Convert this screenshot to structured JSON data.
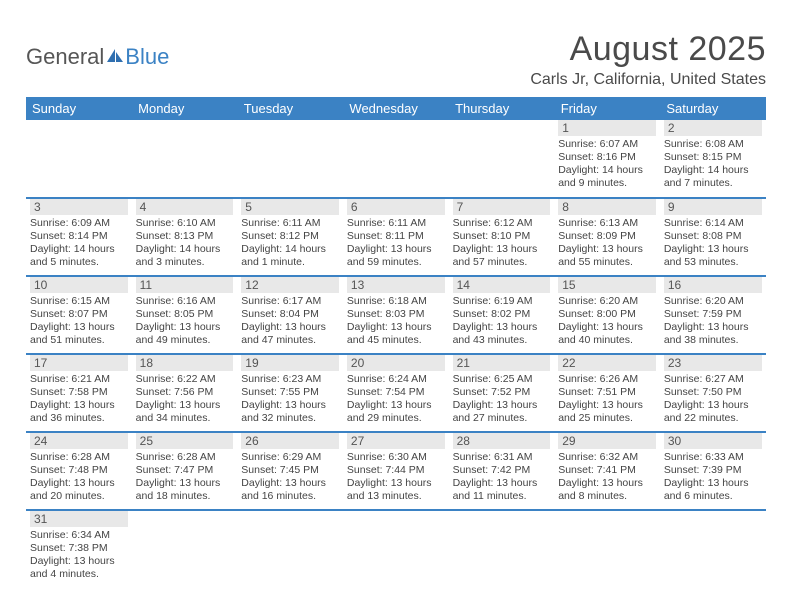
{
  "logo": {
    "textA": "General",
    "textB": "Blue"
  },
  "title": "August 2025",
  "location": "Carls Jr, California, United States",
  "colors": {
    "header_bg": "#3b82c4",
    "header_text": "#ffffff",
    "daynum_bg": "#e8e8e8",
    "text": "#444444",
    "row_divider": "#3b82c4",
    "page_bg": "#ffffff"
  },
  "typography": {
    "title_fontsize": 34,
    "location_fontsize": 16,
    "header_fontsize": 13,
    "daynum_fontsize": 12,
    "info_fontsize": 10.5
  },
  "weekdays": [
    "Sunday",
    "Monday",
    "Tuesday",
    "Wednesday",
    "Thursday",
    "Friday",
    "Saturday"
  ],
  "weeks": [
    [
      null,
      null,
      null,
      null,
      null,
      {
        "n": "1",
        "sr": "Sunrise: 6:07 AM",
        "ss": "Sunset: 8:16 PM",
        "dl": "Daylight: 14 hours and 9 minutes."
      },
      {
        "n": "2",
        "sr": "Sunrise: 6:08 AM",
        "ss": "Sunset: 8:15 PM",
        "dl": "Daylight: 14 hours and 7 minutes."
      }
    ],
    [
      {
        "n": "3",
        "sr": "Sunrise: 6:09 AM",
        "ss": "Sunset: 8:14 PM",
        "dl": "Daylight: 14 hours and 5 minutes."
      },
      {
        "n": "4",
        "sr": "Sunrise: 6:10 AM",
        "ss": "Sunset: 8:13 PM",
        "dl": "Daylight: 14 hours and 3 minutes."
      },
      {
        "n": "5",
        "sr": "Sunrise: 6:11 AM",
        "ss": "Sunset: 8:12 PM",
        "dl": "Daylight: 14 hours and 1 minute."
      },
      {
        "n": "6",
        "sr": "Sunrise: 6:11 AM",
        "ss": "Sunset: 8:11 PM",
        "dl": "Daylight: 13 hours and 59 minutes."
      },
      {
        "n": "7",
        "sr": "Sunrise: 6:12 AM",
        "ss": "Sunset: 8:10 PM",
        "dl": "Daylight: 13 hours and 57 minutes."
      },
      {
        "n": "8",
        "sr": "Sunrise: 6:13 AM",
        "ss": "Sunset: 8:09 PM",
        "dl": "Daylight: 13 hours and 55 minutes."
      },
      {
        "n": "9",
        "sr": "Sunrise: 6:14 AM",
        "ss": "Sunset: 8:08 PM",
        "dl": "Daylight: 13 hours and 53 minutes."
      }
    ],
    [
      {
        "n": "10",
        "sr": "Sunrise: 6:15 AM",
        "ss": "Sunset: 8:07 PM",
        "dl": "Daylight: 13 hours and 51 minutes."
      },
      {
        "n": "11",
        "sr": "Sunrise: 6:16 AM",
        "ss": "Sunset: 8:05 PM",
        "dl": "Daylight: 13 hours and 49 minutes."
      },
      {
        "n": "12",
        "sr": "Sunrise: 6:17 AM",
        "ss": "Sunset: 8:04 PM",
        "dl": "Daylight: 13 hours and 47 minutes."
      },
      {
        "n": "13",
        "sr": "Sunrise: 6:18 AM",
        "ss": "Sunset: 8:03 PM",
        "dl": "Daylight: 13 hours and 45 minutes."
      },
      {
        "n": "14",
        "sr": "Sunrise: 6:19 AM",
        "ss": "Sunset: 8:02 PM",
        "dl": "Daylight: 13 hours and 43 minutes."
      },
      {
        "n": "15",
        "sr": "Sunrise: 6:20 AM",
        "ss": "Sunset: 8:00 PM",
        "dl": "Daylight: 13 hours and 40 minutes."
      },
      {
        "n": "16",
        "sr": "Sunrise: 6:20 AM",
        "ss": "Sunset: 7:59 PM",
        "dl": "Daylight: 13 hours and 38 minutes."
      }
    ],
    [
      {
        "n": "17",
        "sr": "Sunrise: 6:21 AM",
        "ss": "Sunset: 7:58 PM",
        "dl": "Daylight: 13 hours and 36 minutes."
      },
      {
        "n": "18",
        "sr": "Sunrise: 6:22 AM",
        "ss": "Sunset: 7:56 PM",
        "dl": "Daylight: 13 hours and 34 minutes."
      },
      {
        "n": "19",
        "sr": "Sunrise: 6:23 AM",
        "ss": "Sunset: 7:55 PM",
        "dl": "Daylight: 13 hours and 32 minutes."
      },
      {
        "n": "20",
        "sr": "Sunrise: 6:24 AM",
        "ss": "Sunset: 7:54 PM",
        "dl": "Daylight: 13 hours and 29 minutes."
      },
      {
        "n": "21",
        "sr": "Sunrise: 6:25 AM",
        "ss": "Sunset: 7:52 PM",
        "dl": "Daylight: 13 hours and 27 minutes."
      },
      {
        "n": "22",
        "sr": "Sunrise: 6:26 AM",
        "ss": "Sunset: 7:51 PM",
        "dl": "Daylight: 13 hours and 25 minutes."
      },
      {
        "n": "23",
        "sr": "Sunrise: 6:27 AM",
        "ss": "Sunset: 7:50 PM",
        "dl": "Daylight: 13 hours and 22 minutes."
      }
    ],
    [
      {
        "n": "24",
        "sr": "Sunrise: 6:28 AM",
        "ss": "Sunset: 7:48 PM",
        "dl": "Daylight: 13 hours and 20 minutes."
      },
      {
        "n": "25",
        "sr": "Sunrise: 6:28 AM",
        "ss": "Sunset: 7:47 PM",
        "dl": "Daylight: 13 hours and 18 minutes."
      },
      {
        "n": "26",
        "sr": "Sunrise: 6:29 AM",
        "ss": "Sunset: 7:45 PM",
        "dl": "Daylight: 13 hours and 16 minutes."
      },
      {
        "n": "27",
        "sr": "Sunrise: 6:30 AM",
        "ss": "Sunset: 7:44 PM",
        "dl": "Daylight: 13 hours and 13 minutes."
      },
      {
        "n": "28",
        "sr": "Sunrise: 6:31 AM",
        "ss": "Sunset: 7:42 PM",
        "dl": "Daylight: 13 hours and 11 minutes."
      },
      {
        "n": "29",
        "sr": "Sunrise: 6:32 AM",
        "ss": "Sunset: 7:41 PM",
        "dl": "Daylight: 13 hours and 8 minutes."
      },
      {
        "n": "30",
        "sr": "Sunrise: 6:33 AM",
        "ss": "Sunset: 7:39 PM",
        "dl": "Daylight: 13 hours and 6 minutes."
      }
    ],
    [
      {
        "n": "31",
        "sr": "Sunrise: 6:34 AM",
        "ss": "Sunset: 7:38 PM",
        "dl": "Daylight: 13 hours and 4 minutes."
      },
      null,
      null,
      null,
      null,
      null,
      null
    ]
  ]
}
